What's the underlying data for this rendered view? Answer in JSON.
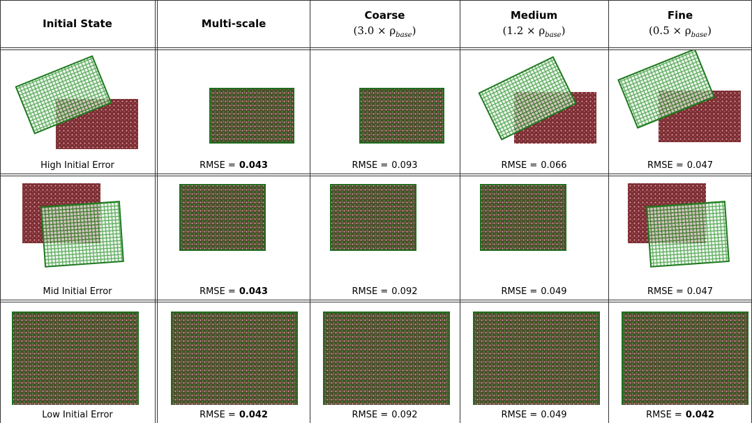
{
  "header": {
    "columns": [
      {
        "title": "Initial State"
      },
      {
        "title": "Multi-scale"
      },
      {
        "title": "Coarse",
        "formula": [
          "(3.0 × ρ",
          "base",
          ")"
        ]
      },
      {
        "title": "Medium",
        "formula": [
          "(1.2 × ρ",
          "base",
          ")"
        ]
      },
      {
        "title": "Fine",
        "formula": [
          "(0.5 × ρ",
          "base",
          ")"
        ]
      }
    ]
  },
  "rmse_label": "RMSE =",
  "rows": [
    {
      "label": "High Initial Error",
      "results": [
        {
          "value": "0.043",
          "best": true
        },
        {
          "value": "0.093",
          "best": false
        },
        {
          "value": "0.066",
          "best": false
        },
        {
          "value": "0.047",
          "best": false
        }
      ]
    },
    {
      "label": "Mid Initial Error",
      "results": [
        {
          "value": "0.043",
          "best": true
        },
        {
          "value": "0.092",
          "best": false
        },
        {
          "value": "0.049",
          "best": false
        },
        {
          "value": "0.047",
          "best": false
        }
      ]
    },
    {
      "label": "Low Initial Error",
      "results": [
        {
          "value": "0.042",
          "best": true
        },
        {
          "value": "0.092",
          "best": false
        },
        {
          "value": "0.049",
          "best": false
        },
        {
          "value": "0.042",
          "best": true
        }
      ]
    }
  ]
}
